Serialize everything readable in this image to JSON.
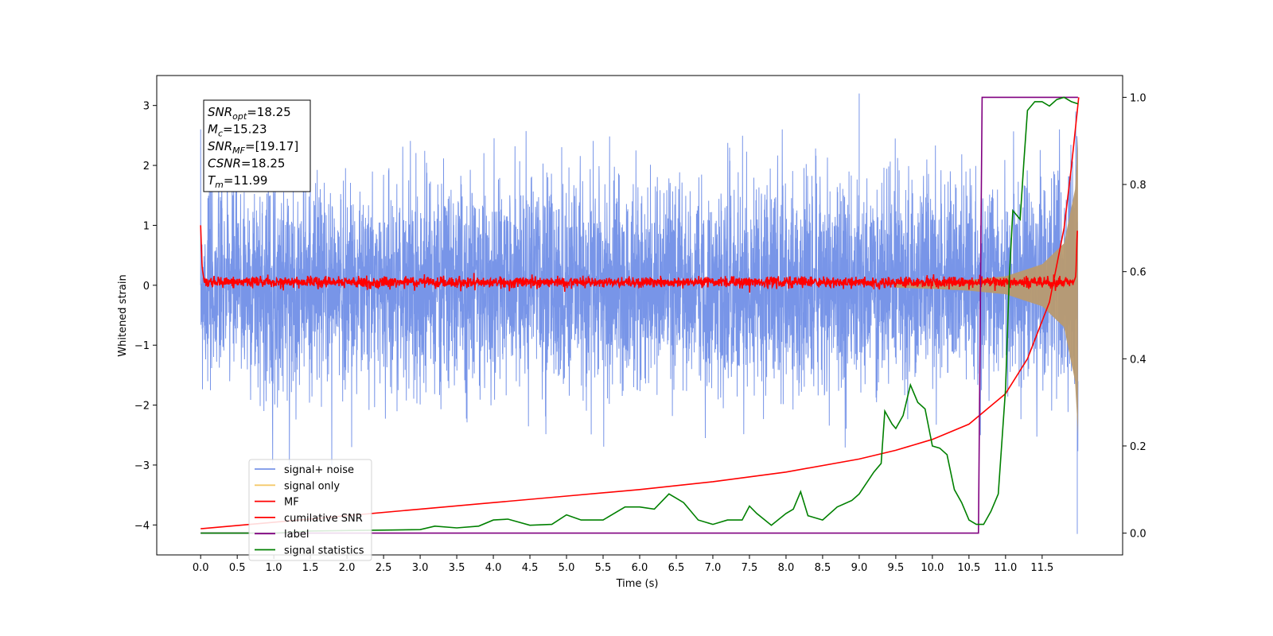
{
  "chart_data": {
    "type": "line",
    "xlabel": "Time (s)",
    "ylabel": "Whitened strain",
    "xlim": [
      -0.6,
      12.6
    ],
    "ylim": [
      -4.5,
      3.5
    ],
    "y2lim": [
      -0.05,
      1.05
    ],
    "x_ticks": [
      0.0,
      0.5,
      1.0,
      1.5,
      2.0,
      2.5,
      3.0,
      3.5,
      4.0,
      4.5,
      5.0,
      5.5,
      6.0,
      6.5,
      7.0,
      7.5,
      8.0,
      8.5,
      9.0,
      9.5,
      10.0,
      10.5,
      11.0,
      11.5
    ],
    "x_tick_labels": [
      "0.0",
      "0.5",
      "1.0",
      "1.5",
      "2.0",
      "2.5",
      "3.0",
      "3.5",
      "4.0",
      "4.5",
      "5.0",
      "5.5",
      "6.0",
      "6.5",
      "7.0",
      "7.5",
      "8.0",
      "8.5",
      "9.0",
      "9.5",
      "10.0",
      "10.5",
      "11.0",
      "11.5"
    ],
    "y_ticks": [
      3,
      2,
      1,
      0,
      -1,
      -2,
      -3,
      -4
    ],
    "y_tick_labels": [
      "3",
      "2",
      "1",
      "0",
      "−1",
      "−2",
      "−3",
      "−4"
    ],
    "y2_ticks": [
      1.0,
      0.8,
      0.6,
      0.4,
      0.2,
      0.0
    ],
    "y2_tick_labels": [
      "1.0",
      "0.8",
      "0.6",
      "0.4",
      "0.2",
      "0.0"
    ],
    "grid": false,
    "legend_position": "lower-left",
    "annotation": [
      {
        "base": "SNR",
        "sub": "opt",
        "value": "=18.25"
      },
      {
        "base": "M",
        "sub": "c",
        "value": "=15.23"
      },
      {
        "base": "SNR",
        "sub": "MF",
        "value": "=[19.17]"
      },
      {
        "base": "CSNR",
        "sub": "",
        "value": "=18.25"
      },
      {
        "base": "T",
        "sub": "m",
        "value": "=11.99"
      }
    ],
    "series": [
      {
        "name": "signal+ noise",
        "color": "#7895e8",
        "axis": "left",
        "description": "white noise, std ~0.85, t 0 to 12",
        "noise_std": 0.85,
        "peaks": [
          [
            0.0,
            2.3
          ],
          [
            9.0,
            3.2
          ],
          [
            11.98,
            -4.15
          ],
          [
            11.96,
            2.9
          ]
        ]
      },
      {
        "name": "signal only",
        "color": "#f5c96a",
        "axis": "left",
        "envelope": [
          [
            9.5,
            0.04
          ],
          [
            10.0,
            0.06
          ],
          [
            10.5,
            0.09
          ],
          [
            11.0,
            0.15
          ],
          [
            11.5,
            0.35
          ],
          [
            11.8,
            0.7
          ],
          [
            11.95,
            1.6
          ],
          [
            11.99,
            2.5
          ]
        ]
      },
      {
        "name": "MF",
        "color": "#ff0000",
        "axis": "left",
        "points": [
          [
            0.0,
            1.0
          ],
          [
            0.02,
            0.3
          ],
          [
            0.05,
            0.05
          ],
          [
            11.93,
            0.05
          ],
          [
            11.96,
            0.15
          ],
          [
            11.98,
            0.9
          ]
        ]
      },
      {
        "name": "cumilative SNR",
        "color": "#ff0000",
        "axis": "right",
        "points": [
          [
            0.0,
            0.01
          ],
          [
            1.0,
            0.025
          ],
          [
            2.0,
            0.04
          ],
          [
            3.0,
            0.055
          ],
          [
            4.0,
            0.07
          ],
          [
            5.0,
            0.085
          ],
          [
            6.0,
            0.1
          ],
          [
            7.0,
            0.118
          ],
          [
            8.0,
            0.14
          ],
          [
            9.0,
            0.17
          ],
          [
            9.5,
            0.19
          ],
          [
            10.0,
            0.215
          ],
          [
            10.5,
            0.25
          ],
          [
            11.0,
            0.32
          ],
          [
            11.3,
            0.4
          ],
          [
            11.6,
            0.53
          ],
          [
            11.8,
            0.7
          ],
          [
            11.9,
            0.84
          ],
          [
            12.0,
            1.0
          ]
        ]
      },
      {
        "name": "label",
        "color": "#800080",
        "axis": "right",
        "points": [
          [
            0.0,
            0.0
          ],
          [
            10.63,
            0.0
          ],
          [
            10.68,
            1.0
          ],
          [
            11.99,
            1.0
          ]
        ]
      },
      {
        "name": "signal statistics",
        "color": "#008000",
        "axis": "right",
        "points": [
          [
            0.0,
            0.0
          ],
          [
            1.0,
            0.0
          ],
          [
            1.5,
            0.005
          ],
          [
            2.0,
            0.006
          ],
          [
            2.5,
            0.007
          ],
          [
            3.0,
            0.008
          ],
          [
            3.2,
            0.016
          ],
          [
            3.5,
            0.012
          ],
          [
            3.8,
            0.016
          ],
          [
            4.0,
            0.03
          ],
          [
            4.2,
            0.032
          ],
          [
            4.5,
            0.018
          ],
          [
            4.8,
            0.02
          ],
          [
            5.0,
            0.042
          ],
          [
            5.2,
            0.03
          ],
          [
            5.5,
            0.03
          ],
          [
            5.8,
            0.06
          ],
          [
            6.0,
            0.06
          ],
          [
            6.2,
            0.055
          ],
          [
            6.4,
            0.09
          ],
          [
            6.5,
            0.08
          ],
          [
            6.6,
            0.07
          ],
          [
            6.8,
            0.03
          ],
          [
            7.0,
            0.02
          ],
          [
            7.2,
            0.03
          ],
          [
            7.4,
            0.03
          ],
          [
            7.5,
            0.062
          ],
          [
            7.6,
            0.045
          ],
          [
            7.8,
            0.018
          ],
          [
            8.0,
            0.045
          ],
          [
            8.1,
            0.055
          ],
          [
            8.2,
            0.095
          ],
          [
            8.3,
            0.04
          ],
          [
            8.5,
            0.03
          ],
          [
            8.7,
            0.06
          ],
          [
            8.9,
            0.075
          ],
          [
            9.0,
            0.09
          ],
          [
            9.2,
            0.14
          ],
          [
            9.3,
            0.16
          ],
          [
            9.35,
            0.28
          ],
          [
            9.45,
            0.25
          ],
          [
            9.5,
            0.24
          ],
          [
            9.6,
            0.27
          ],
          [
            9.7,
            0.34
          ],
          [
            9.8,
            0.3
          ],
          [
            9.9,
            0.285
          ],
          [
            10.0,
            0.2
          ],
          [
            10.1,
            0.195
          ],
          [
            10.2,
            0.18
          ],
          [
            10.3,
            0.1
          ],
          [
            10.4,
            0.07
          ],
          [
            10.5,
            0.03
          ],
          [
            10.6,
            0.02
          ],
          [
            10.7,
            0.02
          ],
          [
            10.8,
            0.05
          ],
          [
            10.9,
            0.09
          ],
          [
            11.0,
            0.33
          ],
          [
            11.05,
            0.58
          ],
          [
            11.1,
            0.74
          ],
          [
            11.2,
            0.72
          ],
          [
            11.25,
            0.85
          ],
          [
            11.3,
            0.97
          ],
          [
            11.4,
            0.99
          ],
          [
            11.5,
            0.99
          ],
          [
            11.6,
            0.98
          ],
          [
            11.7,
            0.995
          ],
          [
            11.8,
            1.0
          ],
          [
            11.9,
            0.99
          ],
          [
            11.99,
            0.985
          ]
        ]
      }
    ]
  }
}
